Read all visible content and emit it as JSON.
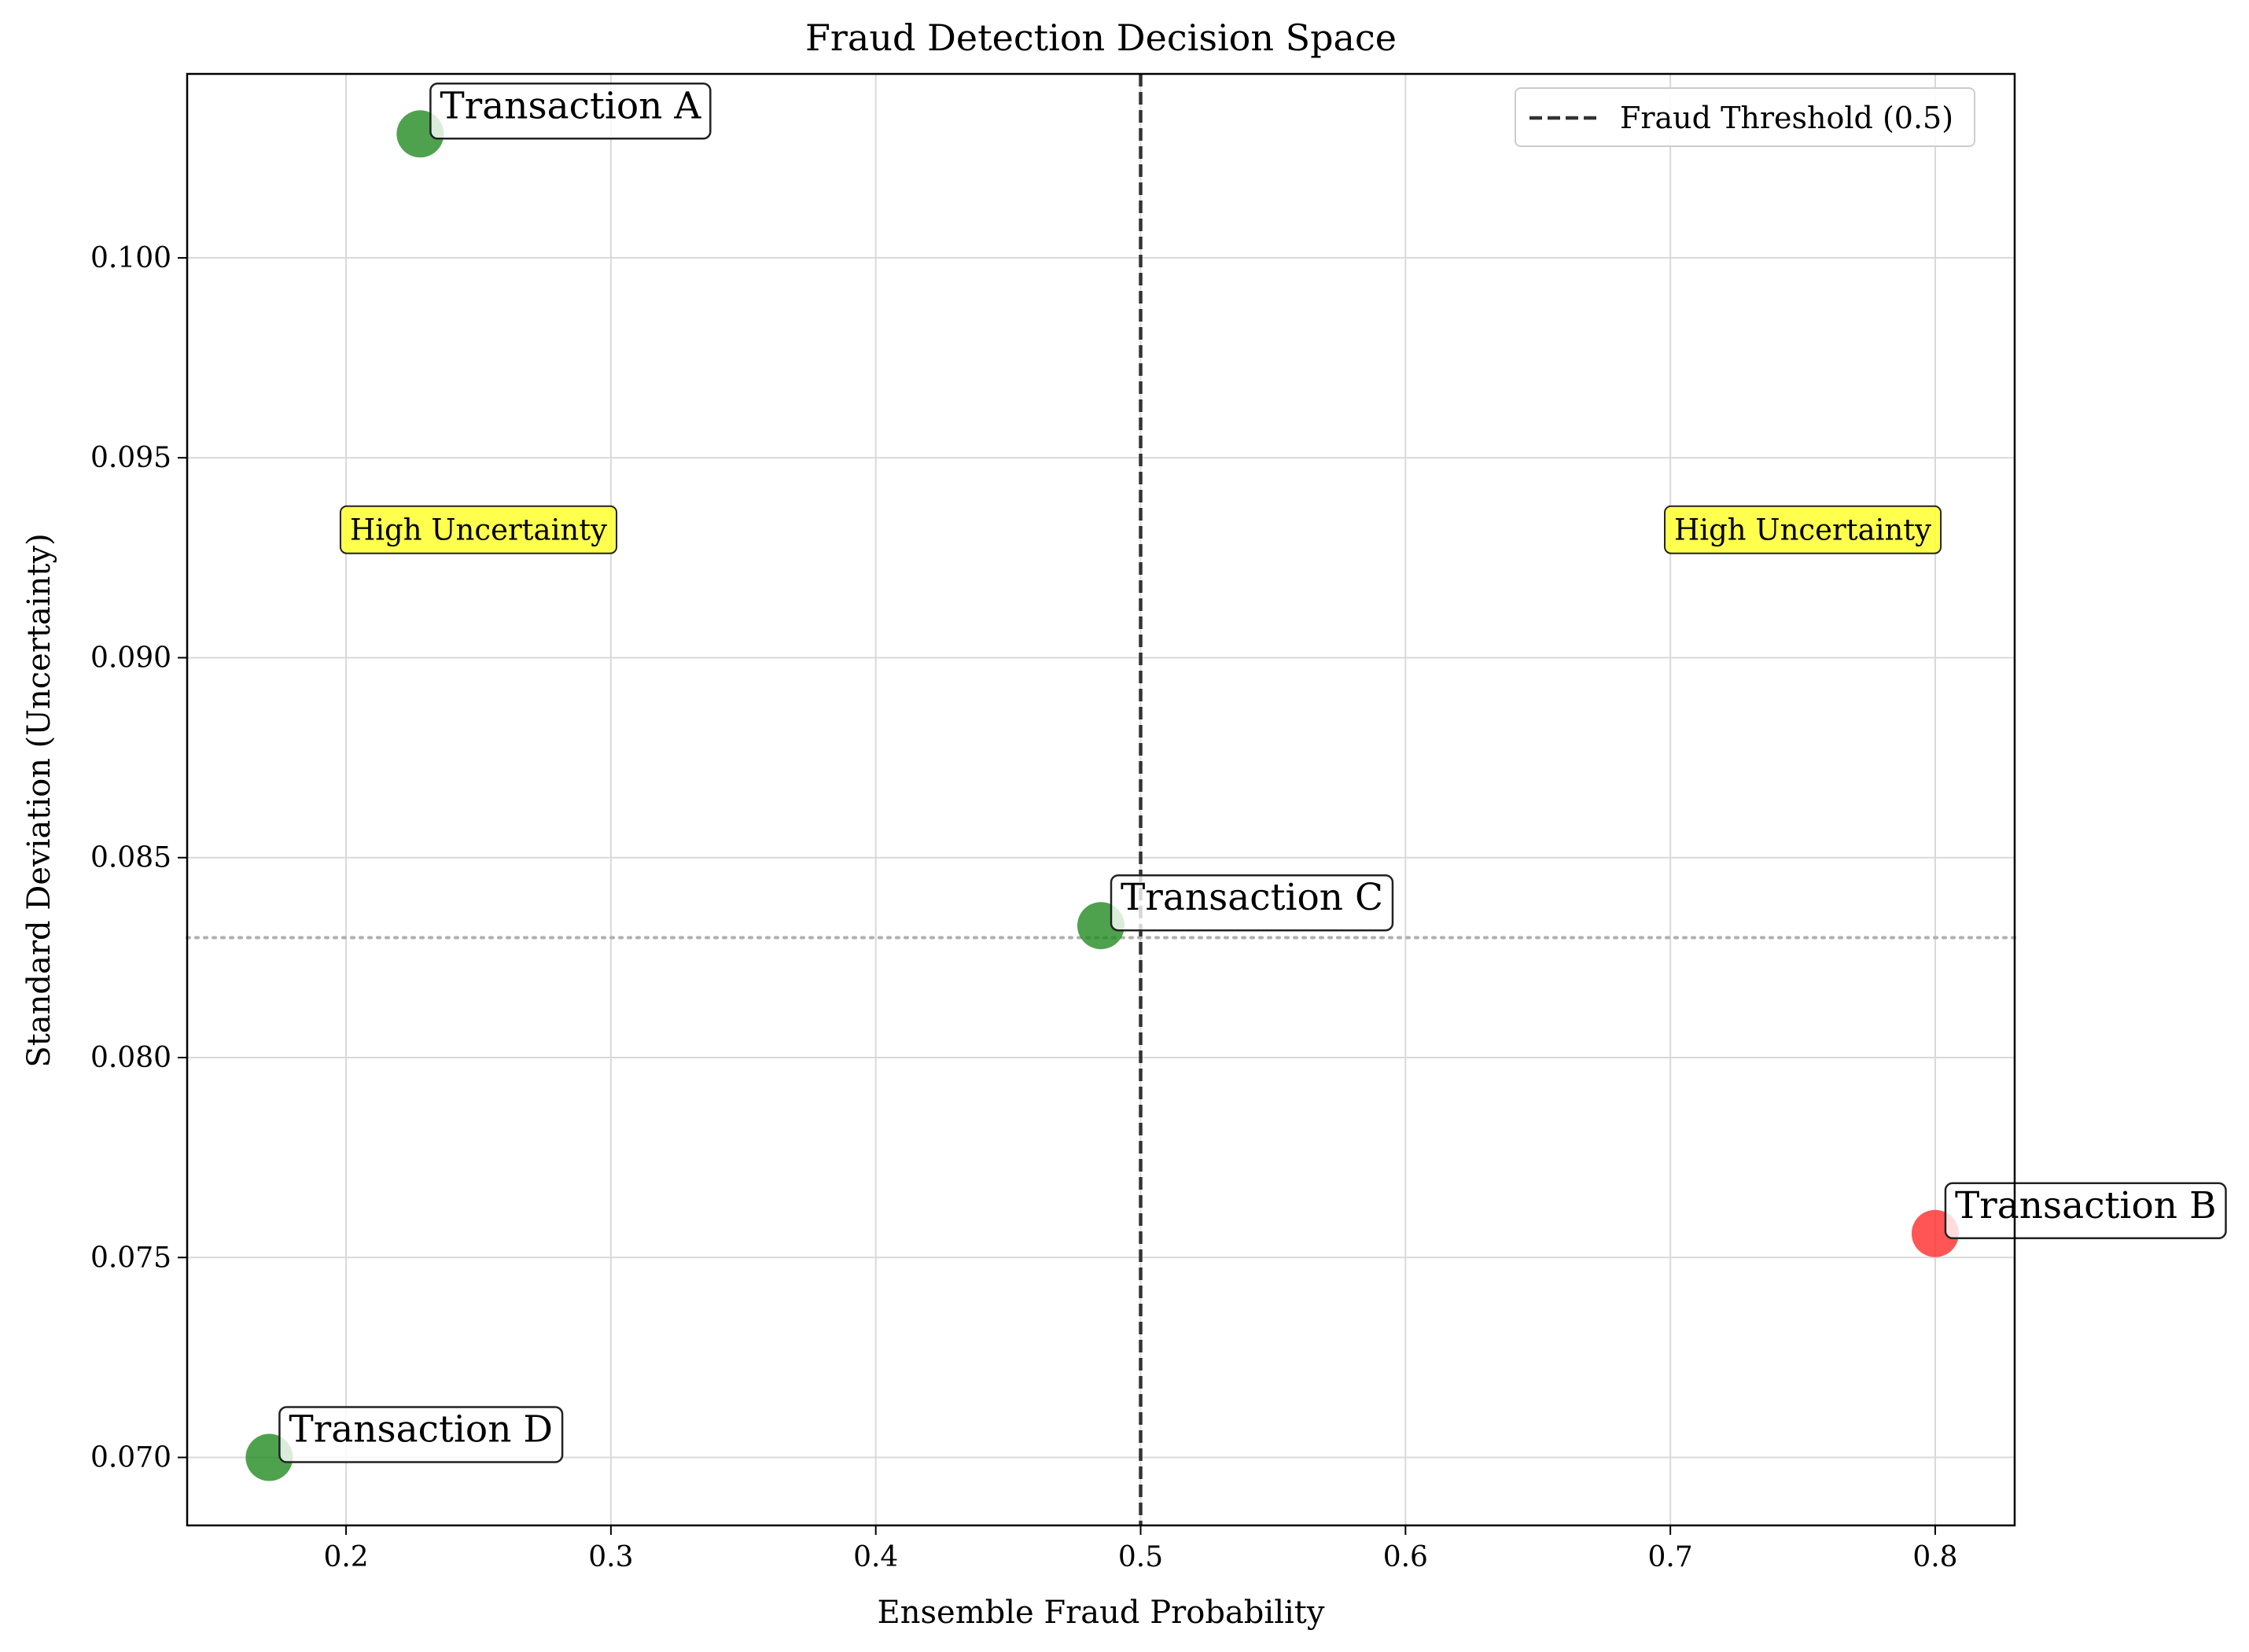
{
  "chart_data": {
    "type": "scatter",
    "title": "Fraud Detection Decision Space",
    "xlabel": "Ensemble Fraud Probability",
    "ylabel": "Standard Deviation (Uncertainty)",
    "xlim": [
      0.14,
      0.83
    ],
    "ylim": [
      0.0683,
      0.1046
    ],
    "xticks": [
      0.2,
      0.3,
      0.4,
      0.5,
      0.6,
      0.7,
      0.8
    ],
    "xtick_labels": [
      "0.2",
      "0.3",
      "0.4",
      "0.5",
      "0.6",
      "0.7",
      "0.8"
    ],
    "yticks": [
      0.07,
      0.075,
      0.08,
      0.085,
      0.09,
      0.095,
      0.1
    ],
    "ytick_labels": [
      "0.070",
      "0.075",
      "0.080",
      "0.085",
      "0.090",
      "0.095",
      "0.100"
    ],
    "grid": true,
    "points": [
      {
        "label": "Transaction A",
        "x": 0.228,
        "y": 0.1031,
        "color": "#228B22"
      },
      {
        "label": "Transaction B",
        "x": 0.8,
        "y": 0.0756,
        "color": "#FF2A2A"
      },
      {
        "label": "Transaction C",
        "x": 0.485,
        "y": 0.0833,
        "color": "#228B22"
      },
      {
        "label": "Transaction D",
        "x": 0.171,
        "y": 0.07,
        "color": "#228B22"
      }
    ],
    "threshold": {
      "x": 0.5,
      "label": "Fraud Threshold (0.5)",
      "color": "#333333"
    },
    "uncertainty_line": {
      "y": 0.083,
      "color": "#b0b0b0"
    },
    "zone_annotations": [
      {
        "text": "High Uncertainty",
        "x": 0.25,
        "y": 0.0932
      },
      {
        "text": "High Uncertainty",
        "x": 0.75,
        "y": 0.0932
      }
    ],
    "legend": {
      "placement": "upper-right",
      "entries": [
        "Fraud Threshold (0.5)"
      ]
    }
  }
}
